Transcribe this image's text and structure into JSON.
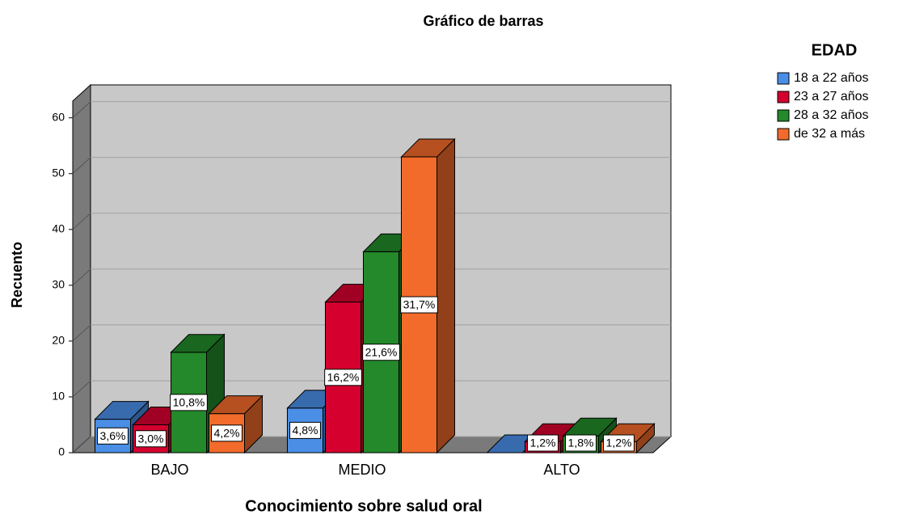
{
  "chart_data": {
    "type": "bar3d",
    "title": "Gráfico de barras",
    "xlabel": "Conocimiento sobre salud oral",
    "ylabel": "Recuento",
    "legend_title": "EDAD",
    "legend": "right",
    "categories": [
      "BAJO",
      "MEDIO",
      "ALTO"
    ],
    "series": [
      {
        "name": "18 a 22 años",
        "color": "#4a8ee6",
        "values": [
          6,
          8,
          0
        ],
        "value_labels": [
          "3,6%",
          "4,8%",
          null
        ]
      },
      {
        "name": "23 a 27 años",
        "color": "#d5002e",
        "values": [
          5,
          27,
          2
        ],
        "value_labels": [
          "3,0%",
          "16,2%",
          "1,2%"
        ]
      },
      {
        "name": "28 a 32 años",
        "color": "#23892a",
        "values": [
          18,
          36,
          3
        ],
        "value_labels": [
          "10,8%",
          "21,6%",
          "1,8%"
        ]
      },
      {
        "name": "de 32 a más",
        "color": "#f26b2b",
        "values": [
          7,
          53,
          2
        ],
        "value_labels": [
          "4,2%",
          "31,7%",
          "1,2%"
        ]
      }
    ],
    "ylim": [
      0,
      63
    ],
    "yticks": [
      0,
      10,
      20,
      30,
      40,
      50,
      60
    ],
    "grid": true
  }
}
